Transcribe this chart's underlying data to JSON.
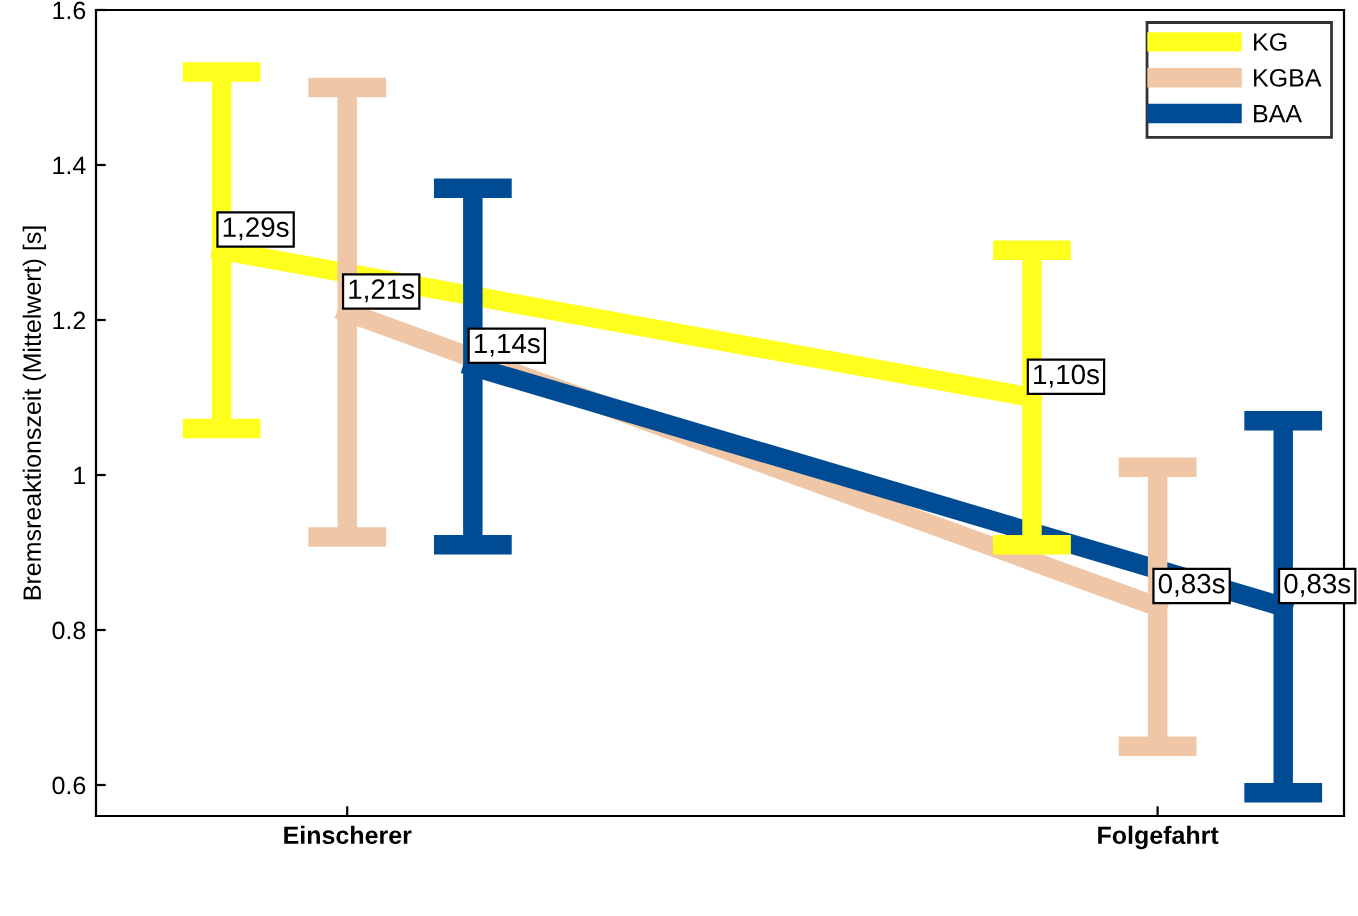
{
  "chart_data": {
    "type": "line",
    "ylabel": "Bremsreaktionszeit (Mittelwert) [s]",
    "categories": [
      "Einscherer",
      "Folgefahrt"
    ],
    "ylim": [
      0.56,
      1.6
    ],
    "yticks": [
      {
        "value": 0.6,
        "label": "0.6"
      },
      {
        "value": 0.8,
        "label": "0.8"
      },
      {
        "value": 1,
        "label": "1"
      },
      {
        "value": 1.2,
        "label": "1.2"
      },
      {
        "value": 1.4,
        "label": "1.4"
      },
      {
        "value": 1.6,
        "label": "1.6"
      }
    ],
    "grid": false,
    "legend": "top right",
    "marker": "none",
    "line_style": "solid",
    "series": [
      {
        "name": "KG",
        "color": "#ffff1e",
        "values": [
          1.29,
          1.1
        ],
        "errors": [
          0.23,
          0.19
        ],
        "value_labels": [
          "1,29s",
          "1,10s"
        ]
      },
      {
        "name": "KGBA",
        "color": "#efc6a6",
        "values": [
          1.21,
          0.83
        ],
        "errors": [
          0.29,
          0.18
        ],
        "value_labels": [
          "1,21s",
          "0,83s"
        ]
      },
      {
        "name": "BAA",
        "color": "#004c94",
        "values": [
          1.14,
          0.83
        ],
        "errors": [
          0.23,
          0.24
        ],
        "value_labels": [
          "1,14s",
          "0,83s"
        ]
      }
    ]
  }
}
